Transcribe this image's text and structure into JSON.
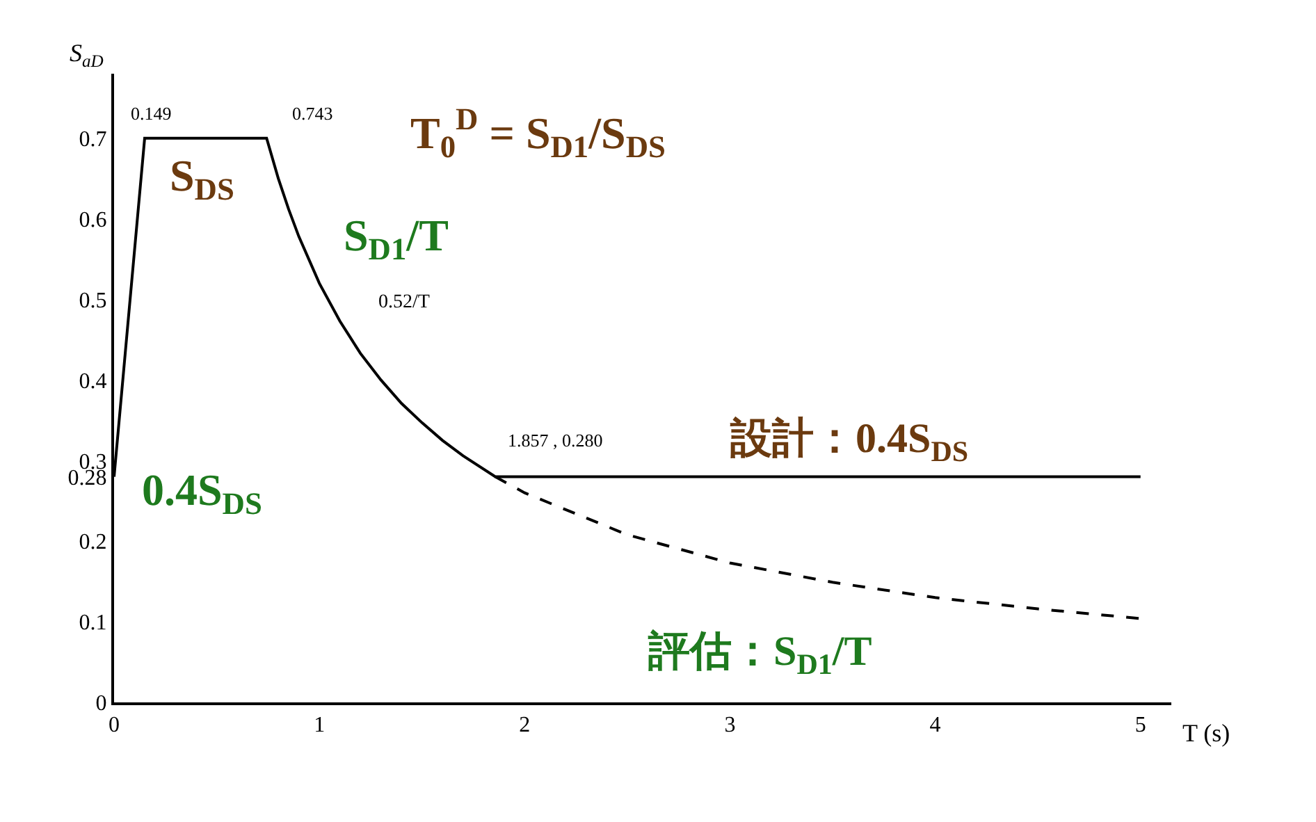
{
  "chart_data": {
    "type": "line",
    "xlabel": "T (s)",
    "ylabel": "S$_{aD}$",
    "series": [
      {
        "color": "#000000",
        "line_style": "solid",
        "x": [
          0,
          0.149,
          0.743,
          0.8,
          0.85,
          0.9,
          1.0,
          1.1,
          1.2,
          1.3,
          1.4,
          1.5,
          1.6,
          1.7,
          1.857,
          5
        ],
        "values": [
          0.28,
          0.7,
          0.7,
          0.65,
          0.612,
          0.578,
          0.52,
          0.473,
          0.433,
          0.4,
          0.371,
          0.347,
          0.325,
          0.306,
          0.28,
          0.28
        ]
      },
      {
        "color": "#000000",
        "line_style": "dashed",
        "x": [
          1.857,
          2,
          2.5,
          3,
          3.5,
          4,
          4.5,
          5
        ],
        "values": [
          0.28,
          0.26,
          0.208,
          0.173,
          0.149,
          0.13,
          0.116,
          0.104
        ]
      }
    ],
    "xlim": [
      0,
      5.15
    ],
    "ylim": [
      0,
      0.78
    ],
    "xticks": [
      0,
      1,
      2,
      3,
      4,
      5
    ],
    "yticks": [
      0,
      0.1,
      0.2,
      0.28,
      0.3,
      0.4,
      0.5,
      0.6,
      0.7
    ],
    "marker": "none",
    "annotations": [
      "0.149",
      "0.743",
      "T$_{0}$$^{D}$ = S$_{D1}$/S$_{DS}$",
      "S$_{DS}$",
      "S$_{D1}$/T",
      "0.52/T",
      "1.857 , 0.280",
      "設計：0.4S$_{DS}$",
      "0.4S$_{DS}$",
      "評估：S$_{D1}$/T"
    ]
  }
}
